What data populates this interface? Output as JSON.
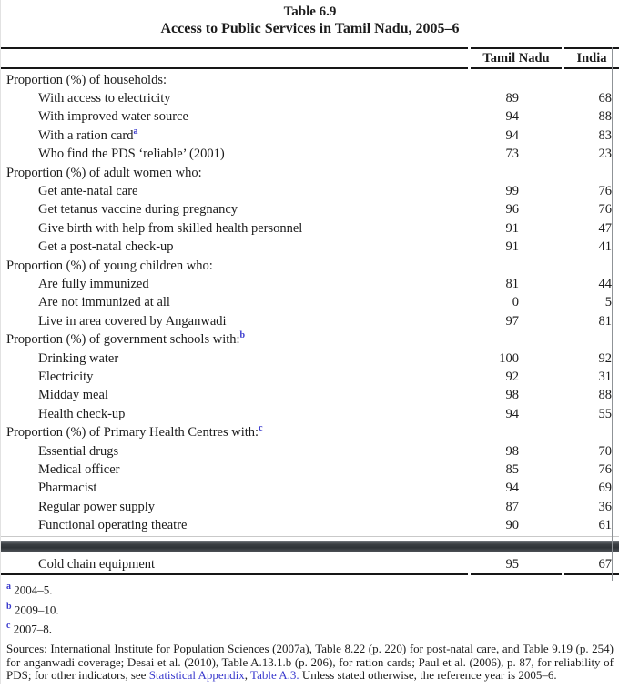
{
  "title": "Table 6.9",
  "subtitle": "Access to Public Services in Tamil Nadu, 2005–6",
  "columns": {
    "col1": "Tamil Nadu",
    "col2": "India"
  },
  "sections": [
    {
      "header": "Proportion (%) of households:",
      "rows": [
        {
          "label": "With access to electricity",
          "tn": "89",
          "india": "68"
        },
        {
          "label": "With improved water source",
          "tn": "94",
          "india": "88"
        },
        {
          "label": "With a ration card",
          "sup": "a",
          "tn": "94",
          "india": "83"
        },
        {
          "label": "Who find the PDS ‘reliable’ (2001)",
          "tn": "73",
          "india": "23"
        }
      ]
    },
    {
      "header": "Proportion (%) of adult women who:",
      "rows": [
        {
          "label": "Get ante-natal care",
          "tn": "99",
          "india": "76"
        },
        {
          "label": "Get tetanus vaccine during pregnancy",
          "tn": "96",
          "india": "76"
        },
        {
          "label": "Give birth with help from skilled health personnel",
          "tn": "91",
          "india": "47"
        },
        {
          "label": "Get a post-natal check-up",
          "tn": "91",
          "india": "41"
        }
      ]
    },
    {
      "header": "Proportion (%) of young children who:",
      "rows": [
        {
          "label": "Are fully immunized",
          "tn": "81",
          "india": "44"
        },
        {
          "label": "Are not immunized at all",
          "tn": "0",
          "india": "5"
        },
        {
          "label": "Live in area covered by Anganwadi",
          "tn": "97",
          "india": "81"
        }
      ]
    },
    {
      "header": "Proportion (%) of government schools with:",
      "header_sup": "b",
      "rows": [
        {
          "label": "Drinking water",
          "tn": "100",
          "india": "92"
        },
        {
          "label": "Electricity",
          "tn": "92",
          "india": "31"
        },
        {
          "label": "Midday meal",
          "tn": "98",
          "india": "88"
        },
        {
          "label": "Health check-up",
          "tn": "94",
          "india": "55"
        }
      ]
    },
    {
      "header": "Proportion (%) of Primary Health Centres with:",
      "header_sup": "c",
      "rows": [
        {
          "label": "Essential drugs",
          "tn": "98",
          "india": "70"
        },
        {
          "label": "Medical officer",
          "tn": "85",
          "india": "76"
        },
        {
          "label": "Pharmacist",
          "tn": "94",
          "india": "69"
        },
        {
          "label": "Regular power supply",
          "tn": "87",
          "india": "36"
        },
        {
          "label": "Functional operating theatre",
          "tn": "90",
          "india": "61"
        }
      ]
    }
  ],
  "continuation_row": {
    "label": "Cold chain equipment",
    "tn": "95",
    "india": "67"
  },
  "footnotes": [
    {
      "marker": "a",
      "text": "2004–5."
    },
    {
      "marker": "b",
      "text": "2009–10."
    },
    {
      "marker": "c",
      "text": "2007–8."
    }
  ],
  "sources": {
    "prefix": "Sources: International Institute for Population Sciences (2007a), Table 8.22 (p. 220) for post-natal care, and Table 9.19 (p. 254) for anganwadi coverage; Desai et al. (2010), Table A.13.1.b (p. 206), for ration cards; Paul et al. (2006), p. 87, for reliability of PDS; for other indicators, see ",
    "link1": "Statistical Appendix",
    "separator": ", ",
    "link2": "Table A.3.",
    "suffix": " Unless stated otherwise, the reference year is 2005–6."
  },
  "colors": {
    "link_blue": "#3a3acd",
    "text": "#1c1c1c",
    "rule": "#161616",
    "band": "#35393d"
  }
}
